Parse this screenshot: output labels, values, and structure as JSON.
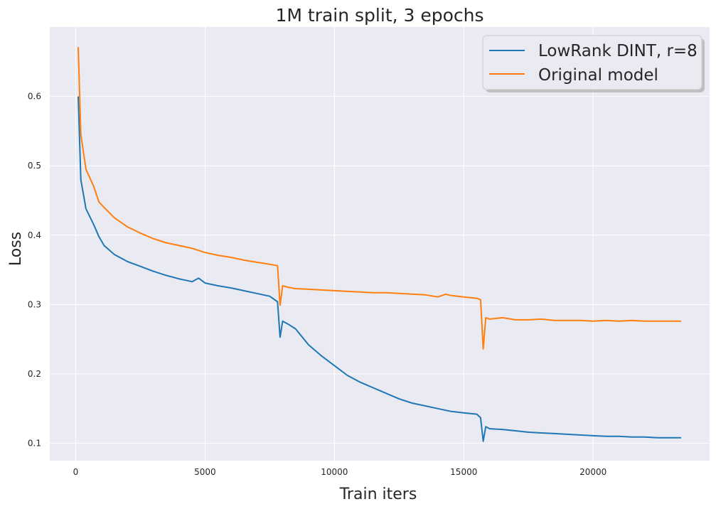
{
  "chart_data": {
    "type": "line",
    "title": "1M train split, 3 epochs",
    "xlabel": "Train iters",
    "ylabel": "Loss",
    "xlim": [
      -1000,
      24500
    ],
    "ylim": [
      0.075,
      0.7
    ],
    "xticks": [
      0,
      5000,
      10000,
      15000,
      20000
    ],
    "yticks": [
      0.1,
      0.2,
      0.3,
      0.4,
      0.5,
      0.6
    ],
    "xtick_labels": [
      "0",
      "5000",
      "10000",
      "15000",
      "20000"
    ],
    "ytick_labels": [
      "0.1",
      "0.2",
      "0.3",
      "0.4",
      "0.5",
      "0.6"
    ],
    "grid": true,
    "legend_position": "top-right",
    "series": [
      {
        "name": "LowRank DINT, r=8",
        "color": "#1f77b4",
        "x": [
          100,
          200,
          400,
          700,
          900,
          1100,
          1500,
          2000,
          2500,
          3000,
          3500,
          4000,
          4500,
          4750,
          5000,
          5500,
          6000,
          6500,
          7000,
          7500,
          7800,
          7900,
          8000,
          8200,
          8500,
          9000,
          9500,
          10000,
          10500,
          11000,
          11500,
          12000,
          12500,
          13000,
          13500,
          14000,
          14500,
          15000,
          15500,
          15650,
          15750,
          15850,
          16000,
          16500,
          17000,
          17500,
          18000,
          18500,
          19000,
          19500,
          20000,
          20500,
          21000,
          21500,
          22000,
          22500,
          23000,
          23400
        ],
        "values": [
          0.6,
          0.48,
          0.438,
          0.415,
          0.398,
          0.385,
          0.372,
          0.362,
          0.355,
          0.348,
          0.342,
          0.337,
          0.333,
          0.338,
          0.331,
          0.327,
          0.324,
          0.32,
          0.316,
          0.312,
          0.304,
          0.253,
          0.276,
          0.272,
          0.265,
          0.242,
          0.226,
          0.212,
          0.198,
          0.188,
          0.18,
          0.172,
          0.164,
          0.158,
          0.154,
          0.15,
          0.146,
          0.144,
          0.142,
          0.137,
          0.103,
          0.124,
          0.121,
          0.12,
          0.118,
          0.116,
          0.115,
          0.114,
          0.113,
          0.112,
          0.111,
          0.11,
          0.11,
          0.109,
          0.109,
          0.108,
          0.108,
          0.108
        ]
      },
      {
        "name": "Original model",
        "color": "#ff7f0e",
        "x": [
          100,
          200,
          400,
          700,
          900,
          1100,
          1500,
          2000,
          2500,
          3000,
          3500,
          4000,
          4500,
          5000,
          5500,
          6000,
          6500,
          7000,
          7500,
          7800,
          7900,
          8000,
          8200,
          8500,
          9000,
          9500,
          10000,
          10500,
          11000,
          11500,
          12000,
          12500,
          13000,
          13500,
          14000,
          14300,
          14500,
          15000,
          15500,
          15650,
          15750,
          15850,
          16000,
          16500,
          17000,
          17500,
          18000,
          18500,
          19000,
          19500,
          20000,
          20500,
          21000,
          21500,
          22000,
          22500,
          23000,
          23400
        ],
        "values": [
          0.671,
          0.545,
          0.495,
          0.47,
          0.448,
          0.44,
          0.425,
          0.412,
          0.403,
          0.395,
          0.389,
          0.385,
          0.381,
          0.375,
          0.371,
          0.368,
          0.364,
          0.361,
          0.358,
          0.356,
          0.299,
          0.327,
          0.325,
          0.323,
          0.322,
          0.321,
          0.32,
          0.319,
          0.318,
          0.317,
          0.317,
          0.316,
          0.315,
          0.314,
          0.311,
          0.315,
          0.313,
          0.311,
          0.309,
          0.307,
          0.236,
          0.281,
          0.279,
          0.281,
          0.278,
          0.278,
          0.279,
          0.277,
          0.277,
          0.277,
          0.276,
          0.277,
          0.276,
          0.277,
          0.276,
          0.276,
          0.276,
          0.276
        ]
      }
    ],
    "style": {
      "plot_background": "#eaeaf2",
      "grid_color": "#ffffff",
      "legend_border": "#cccccc"
    }
  }
}
